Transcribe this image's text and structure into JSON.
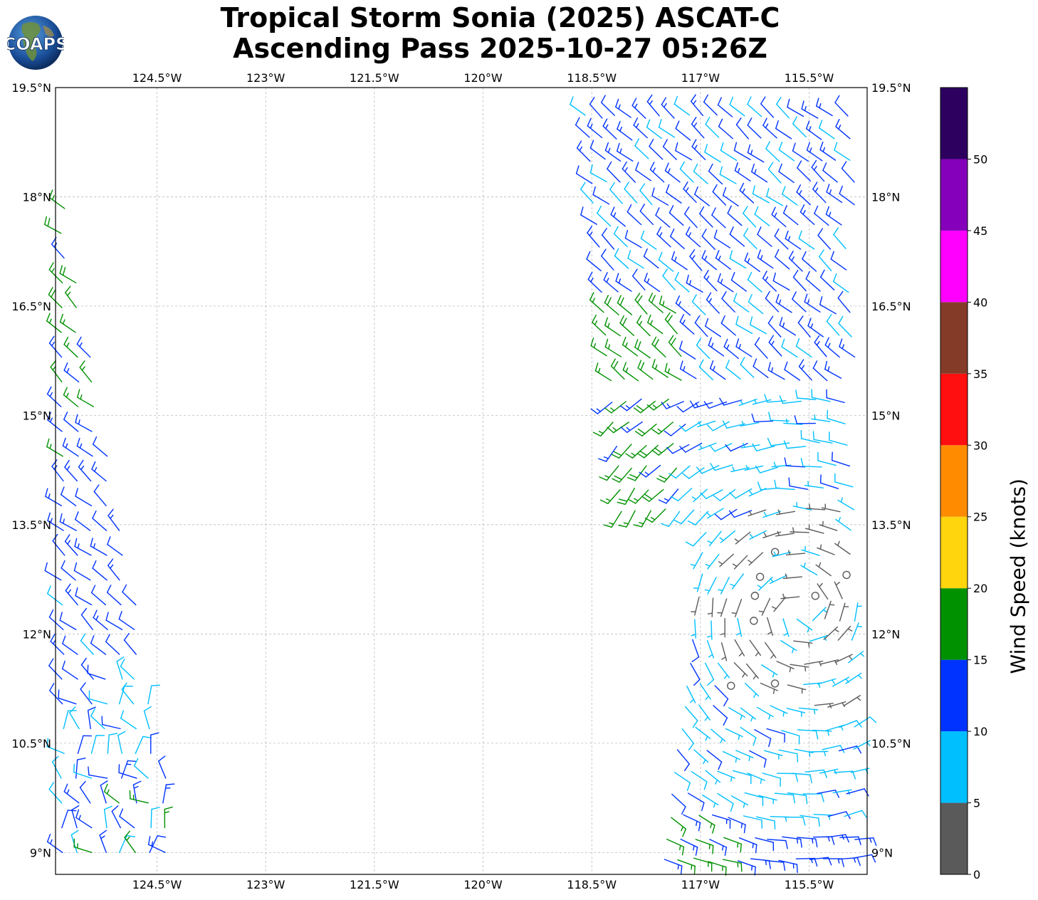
{
  "title": {
    "line1": "Tropical Storm Sonia (2025) ASCAT-C",
    "line2": "Ascending Pass 2025-10-27 05:26Z"
  },
  "logo": {
    "text": "COAPS",
    "icon": "globe-logo-icon"
  },
  "map": {
    "lat_range": [
      8.7,
      19.5
    ],
    "lon_range": [
      -125.9,
      -114.7
    ],
    "lat_ticks": [
      "19.5°N",
      "18°N",
      "16.5°N",
      "15°N",
      "13.5°N",
      "12°N",
      "10.5°N",
      "9°N"
    ],
    "lat_tick_values": [
      19.5,
      18,
      16.5,
      15,
      13.5,
      12,
      10.5,
      9
    ],
    "lon_ticks": [
      "124.5°W",
      "123°W",
      "121.5°W",
      "120°W",
      "118.5°W",
      "117°W",
      "115.5°W"
    ],
    "lon_tick_values": [
      -124.5,
      -123,
      -121.5,
      -120,
      -118.5,
      -117,
      -115.5
    ],
    "grid": true,
    "storm_center_approx": {
      "lat": 12.3,
      "lon": -115.6
    }
  },
  "colorbar": {
    "label": "Wind Speed (knots)",
    "ticks": [
      "0",
      "5",
      "10",
      "15",
      "20",
      "25",
      "30",
      "35",
      "40",
      "45",
      "50"
    ],
    "bins": [
      {
        "min": 0,
        "max": 5,
        "color": "#5a5a5a"
      },
      {
        "min": 5,
        "max": 10,
        "color": "#00bfff"
      },
      {
        "min": 10,
        "max": 15,
        "color": "#0033ff"
      },
      {
        "min": 15,
        "max": 20,
        "color": "#009100"
      },
      {
        "min": 20,
        "max": 25,
        "color": "#ffd50e"
      },
      {
        "min": 25,
        "max": 30,
        "color": "#ff8c00"
      },
      {
        "min": 30,
        "max": 35,
        "color": "#ff0f0f"
      },
      {
        "min": 35,
        "max": 40,
        "color": "#843c28"
      },
      {
        "min": 40,
        "max": 45,
        "color": "#ff00ff"
      },
      {
        "min": 45,
        "max": 50,
        "color": "#8400ba"
      },
      {
        "min": 50,
        "max": 55,
        "color": "#2d0060"
      }
    ]
  }
}
